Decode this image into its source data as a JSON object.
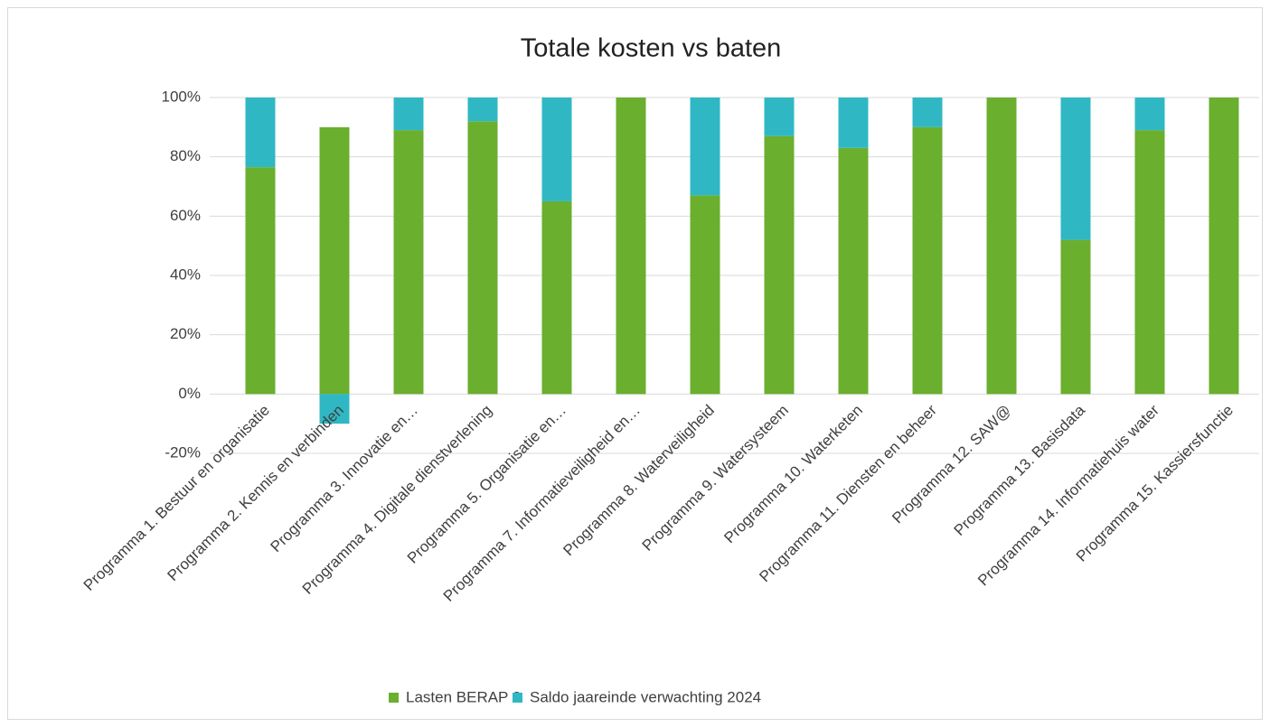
{
  "chart_data": {
    "type": "bar",
    "stacked": true,
    "title": "Totale kosten vs baten",
    "categories": [
      "Programma 1. Bestuur en organisatie",
      "Programma 2. Kennis en verbinden",
      "Programma 3. Innovatie en…",
      "Programma 4. Digitale dienstverlening",
      "Programma 5. Organisatie en…",
      "Programma 7. Informatieveiligheid en…",
      "Programma 8. Waterveiligheid",
      "Programma 9. Watersysteem",
      "Programma 10. Waterketen",
      "Programma 11. Diensten en beheer",
      "Programma 12. SAW@",
      "Programma 13. Basisdata",
      "Programma 14. Informatiehuis water",
      "Programma 15. Kassiersfunctie"
    ],
    "series": [
      {
        "name": "Lasten BERAP 2",
        "color": "#6aaf2e",
        "values": [
          76.5,
          90,
          89,
          92,
          65,
          100,
          67,
          87,
          83,
          90,
          100,
          52,
          89,
          100
        ]
      },
      {
        "name": "Saldo jaareinde verwachting 2024",
        "color": "#2fb8c4",
        "values": [
          23.5,
          -10,
          11,
          8,
          35,
          0,
          33,
          13,
          17,
          10,
          0,
          48,
          11,
          0
        ]
      }
    ],
    "ylim": [
      -20,
      100
    ],
    "yticks": [
      {
        "value": -20,
        "label": "-20%"
      },
      {
        "value": 0,
        "label": "0%"
      },
      {
        "value": 20,
        "label": "20%"
      },
      {
        "value": 40,
        "label": "40%"
      },
      {
        "value": 60,
        "label": "60%"
      },
      {
        "value": 80,
        "label": "80%"
      },
      {
        "value": 100,
        "label": "100%"
      }
    ],
    "grid": true,
    "legend": "bottom"
  }
}
